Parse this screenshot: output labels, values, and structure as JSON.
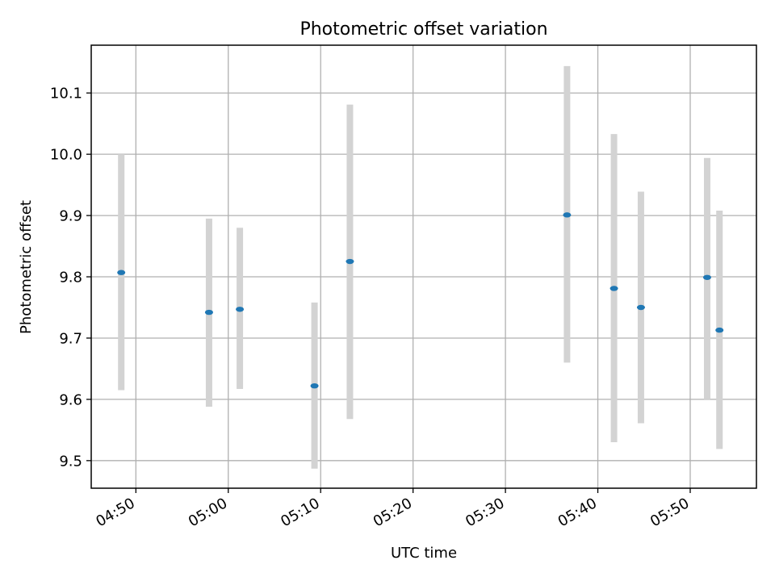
{
  "chart_data": {
    "type": "scatter",
    "title": "Photometric offset variation",
    "xlabel": "UTC time",
    "ylabel": "Photometric offset",
    "x_ticks": [
      "04:50",
      "05:00",
      "05:10",
      "05:20",
      "05:30",
      "05:40",
      "05:50"
    ],
    "y_ticks": [
      "9.5",
      "9.6",
      "9.7",
      "9.8",
      "9.9",
      "10.0",
      "10.1"
    ],
    "xlim": [
      "04:45:10",
      "05:57:10"
    ],
    "ylim": [
      9.455,
      10.178
    ],
    "grid": true,
    "legend": "none",
    "colors": {
      "point": "#1f77b4",
      "errorbar": "#d3d3d3",
      "grid": "#b0b0b0"
    },
    "points": [
      {
        "x": "04:48:25",
        "y": 9.807,
        "ylow": 9.615,
        "yhigh": 10.0
      },
      {
        "x": "04:57:55",
        "y": 9.742,
        "ylow": 9.588,
        "yhigh": 9.895
      },
      {
        "x": "05:01:15",
        "y": 9.747,
        "ylow": 9.617,
        "yhigh": 9.88
      },
      {
        "x": "05:09:20",
        "y": 9.622,
        "ylow": 9.487,
        "yhigh": 9.758
      },
      {
        "x": "05:13:10",
        "y": 9.825,
        "ylow": 9.568,
        "yhigh": 10.081
      },
      {
        "x": "05:36:40",
        "y": 9.901,
        "ylow": 9.66,
        "yhigh": 10.144
      },
      {
        "x": "05:41:45",
        "y": 9.781,
        "ylow": 9.53,
        "yhigh": 10.033
      },
      {
        "x": "05:44:40",
        "y": 9.75,
        "ylow": 9.561,
        "yhigh": 9.939
      },
      {
        "x": "05:51:50",
        "y": 9.799,
        "ylow": 9.6,
        "yhigh": 9.994
      },
      {
        "x": "05:53:10",
        "y": 9.713,
        "ylow": 9.519,
        "yhigh": 9.908
      }
    ]
  }
}
